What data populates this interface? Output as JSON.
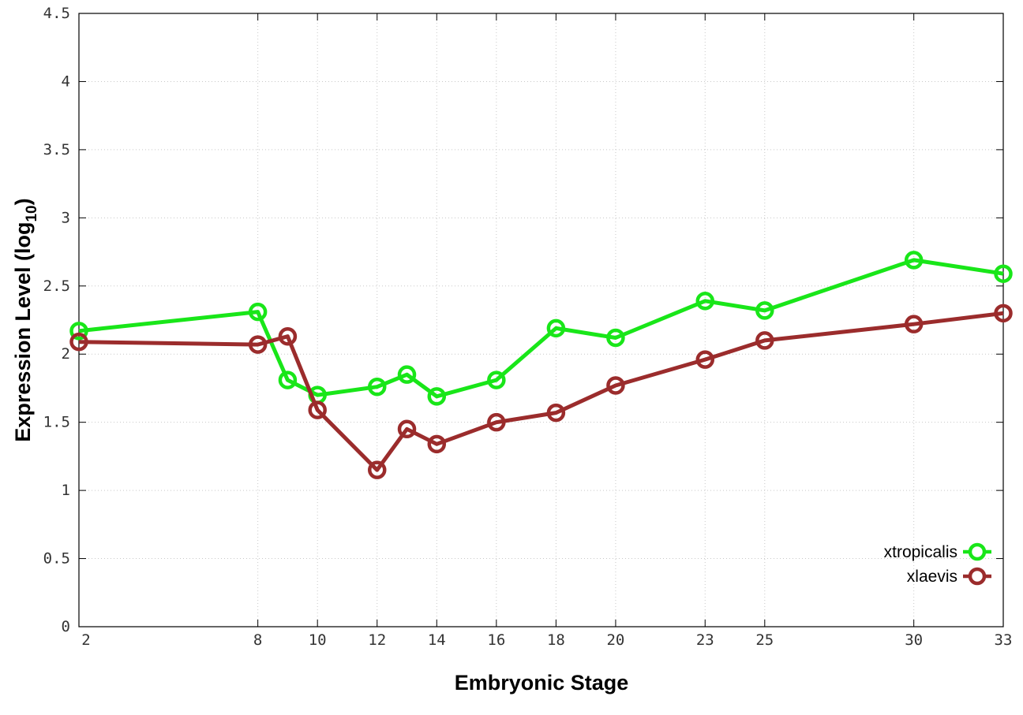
{
  "chart_data": {
    "type": "line",
    "title": "",
    "xlabel": "Embryonic Stage",
    "ylabel": "Expression Level (log",
    "ylabel_subscript": "10",
    "ylabel_close": ")",
    "x_ticks": [
      2,
      8,
      10,
      12,
      14,
      16,
      18,
      20,
      23,
      25,
      30,
      33
    ],
    "y_ticks": [
      "0",
      "0.5",
      "1",
      "1.5",
      "2",
      "2.5",
      "3",
      "3.5",
      "4",
      "4.5"
    ],
    "xlim": [
      2,
      33
    ],
    "ylim": [
      0,
      4.5
    ],
    "grid": true,
    "legend_position": "bottom-right",
    "series": [
      {
        "name": "xtropicalis",
        "color": "#19e619",
        "x": [
          2,
          8,
          9,
          10,
          12,
          13,
          14,
          16,
          18,
          20,
          23,
          25,
          30,
          33
        ],
        "y": [
          2.17,
          2.31,
          1.81,
          1.7,
          1.76,
          1.85,
          1.69,
          1.81,
          2.19,
          2.12,
          2.39,
          2.32,
          2.69,
          2.59
        ]
      },
      {
        "name": "xlaevis",
        "color": "#9b2c2c",
        "x": [
          2,
          8,
          9,
          10,
          12,
          13,
          14,
          16,
          18,
          20,
          23,
          25,
          30,
          33
        ],
        "y": [
          2.09,
          2.07,
          2.13,
          1.59,
          1.15,
          1.45,
          1.34,
          1.5,
          1.57,
          1.77,
          1.96,
          2.1,
          2.22,
          2.3
        ]
      }
    ]
  }
}
